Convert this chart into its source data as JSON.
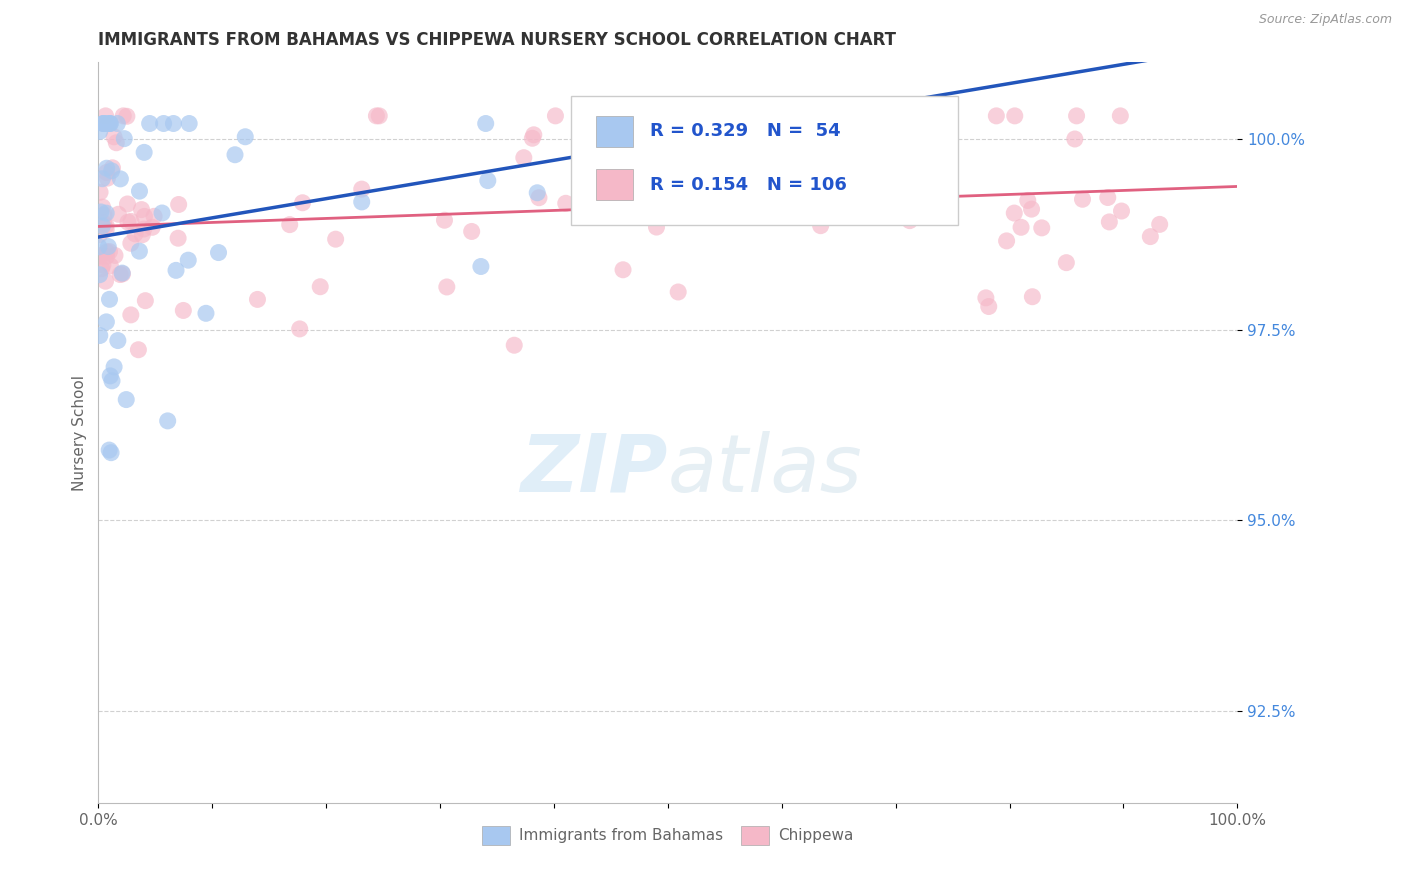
{
  "title": "IMMIGRANTS FROM BAHAMAS VS CHIPPEWA NURSERY SCHOOL CORRELATION CHART",
  "source": "Source: ZipAtlas.com",
  "ylabel": "Nursery School",
  "yaxis_values": [
    92.5,
    95.0,
    97.5,
    100.0
  ],
  "xmin": 0.0,
  "xmax": 100.0,
  "ymin": 91.3,
  "ymax": 101.0,
  "blue_r": 0.329,
  "blue_n": 54,
  "pink_r": 0.154,
  "pink_n": 106,
  "blue_color": "#a8c8f0",
  "pink_color": "#f5b8c8",
  "blue_line_color": "#2255bb",
  "pink_line_color": "#e06080",
  "legend_label_blue": "Immigrants from Bahamas",
  "legend_label_pink": "Chippewa",
  "watermark_zip": "ZIP",
  "watermark_atlas": "atlas",
  "title_color": "#333333",
  "axis_label_color": "#666666",
  "right_tick_color": "#4488dd",
  "grid_color": "#cccccc",
  "source_color": "#999999"
}
